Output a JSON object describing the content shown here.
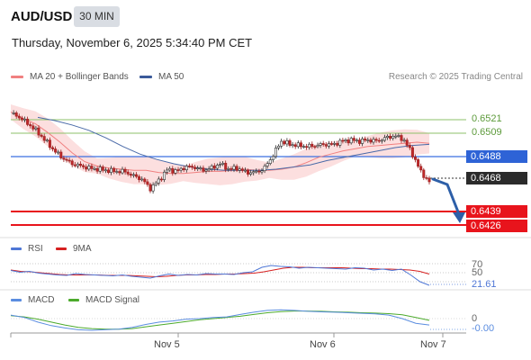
{
  "header": {
    "symbol": "AUD/USD",
    "timeframe": "30 MIN",
    "datetime": "Thursday, November 6, 2025 5:34:40 PM CET",
    "copyright": "Research © 2025 Trading Central"
  },
  "legend": {
    "ma20_bb": "MA 20 + Bollinger Bands",
    "ma50": "MA 50",
    "rsi": "RSI",
    "rsi_ma": "9MA",
    "macd": "MACD",
    "macd_signal": "MACD Signal"
  },
  "colors": {
    "bb_fill": "#fbd9d9",
    "ma20": "#f08080",
    "ma50": "#4a6aa8",
    "current_line": "#3b6fe0",
    "resistance": "#8ec26a",
    "support": "#e8141c",
    "current_tag": "#2e63d6",
    "last_tag": "#2b2b2b",
    "projection_arrow": "#2d5fa8",
    "rsi": "#4f77d6",
    "rsi_ma": "#d62020",
    "macd": "#5b8de0",
    "macd_signal": "#4caa2c"
  },
  "levels": {
    "r2": "0.6521",
    "r1": "0.6509",
    "current": "0.6488",
    "last": "0.6468",
    "s1": "0.6439",
    "s2": "0.6426"
  },
  "rsi_panel": {
    "level_70": "70",
    "level_50": "50",
    "value": "21.61"
  },
  "macd_panel": {
    "zero": "0",
    "value": "-0.00"
  },
  "x_axis": [
    "Nov 5",
    "Nov 6",
    "Nov 7"
  ],
  "chart_data": {
    "type": "candlestick",
    "y_range": [
      0.642,
      0.6545
    ],
    "close_path": [
      0.6532,
      0.6528,
      0.6522,
      0.6515,
      0.6506,
      0.6497,
      0.649,
      0.6485,
      0.6483,
      0.6481,
      0.648,
      0.6479,
      0.6478,
      0.6478,
      0.6474,
      0.6471,
      0.6462,
      0.647,
      0.648,
      0.6478,
      0.6482,
      0.6482,
      0.6479,
      0.6481,
      0.6485,
      0.648,
      0.6481,
      0.6477,
      0.6477,
      0.648,
      0.6492,
      0.6506,
      0.6503,
      0.6502,
      0.6501,
      0.6502,
      0.6503,
      0.6503,
      0.6506,
      0.6507,
      0.6506,
      0.6507,
      0.6506,
      0.6509,
      0.6511,
      0.6508,
      0.6495,
      0.6478,
      0.6468
    ],
    "ma20": [
      0.6533,
      0.6527,
      0.6522,
      0.6514,
      0.6505,
      0.6495,
      0.6487,
      0.6483,
      0.6481,
      0.648,
      0.6479,
      0.6479,
      0.6477,
      0.6476,
      0.6476,
      0.6477,
      0.6478,
      0.6478,
      0.6479,
      0.648,
      0.6479,
      0.6479,
      0.648,
      0.6482,
      0.6486,
      0.6491,
      0.6494,
      0.6497,
      0.6499,
      0.6501,
      0.6502,
      0.6503,
      0.6504,
      0.6505,
      0.6504
    ],
    "ma50": [
      0.6528,
      0.6525,
      0.6521,
      0.6516,
      0.6509,
      0.6501,
      0.6494,
      0.6489,
      0.6485,
      0.6482,
      0.648,
      0.6479,
      0.6479,
      0.6479,
      0.648,
      0.6482,
      0.6484,
      0.6488,
      0.6491,
      0.6494,
      0.6497,
      0.65,
      0.6502,
      0.6503
    ],
    "rsi": [
      55,
      51,
      53,
      49,
      47,
      45,
      44,
      48,
      46,
      45,
      44,
      43,
      45,
      42,
      40,
      38,
      43,
      47,
      44,
      46,
      45,
      48,
      47,
      47,
      46,
      50,
      52,
      62,
      66,
      64,
      63,
      60,
      62,
      61,
      60,
      59,
      58,
      61,
      60,
      56,
      58,
      55,
      58,
      45,
      30,
      22
    ],
    "rsi_ma": [
      56,
      53,
      52,
      50,
      48,
      46,
      45,
      45,
      45,
      45,
      44,
      44,
      44,
      43,
      42,
      41,
      42,
      44,
      45,
      45,
      46,
      46,
      47,
      47,
      48,
      49,
      52,
      56,
      60,
      62,
      62,
      61,
      61,
      61,
      61,
      60,
      59,
      59,
      58,
      58,
      57,
      56,
      53,
      47
    ],
    "macd": [
      0.3,
      0.1,
      -0.3,
      -0.6,
      -0.8,
      -0.95,
      -1.0,
      -0.95,
      -0.9,
      -0.75,
      -0.5,
      -0.3,
      -0.2,
      -0.05,
      0.0,
      0.1,
      0.15,
      0.35,
      0.55,
      0.7,
      0.75,
      0.7,
      0.62,
      0.58,
      0.55,
      0.5,
      0.45,
      0.4,
      0.3,
      0.0,
      -0.4,
      -0.55
    ],
    "macd_signal": [
      0.25,
      0.15,
      -0.05,
      -0.3,
      -0.55,
      -0.75,
      -0.85,
      -0.9,
      -0.9,
      -0.85,
      -0.7,
      -0.55,
      -0.4,
      -0.25,
      -0.1,
      0.0,
      0.1,
      0.2,
      0.35,
      0.5,
      0.6,
      0.65,
      0.65,
      0.62,
      0.58,
      0.55,
      0.5,
      0.47,
      0.42,
      0.32,
      0.1,
      -0.15
    ]
  }
}
